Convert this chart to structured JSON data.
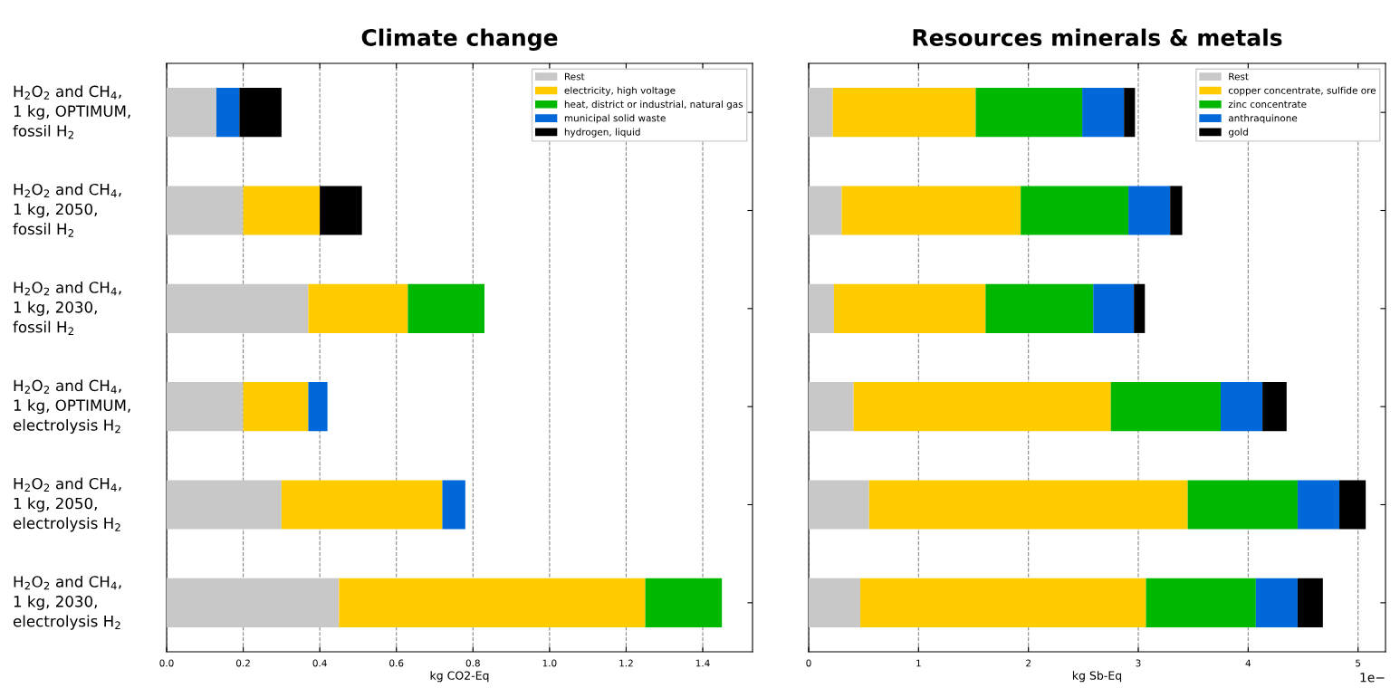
{
  "chart_data": [
    {
      "type": "bar",
      "orientation": "horizontal",
      "stacked": true,
      "title": "Climate change",
      "xlabel": "kg CO2-Eq",
      "categories": [
        "H$_{2}$O$_{2}$ and CH$_{4}$,\n1 kg, OPTIMUM,\nfossil H$_{2}$",
        "H$_{2}$O$_{2}$ and CH$_{4}$,\n1 kg, 2050,\nfossil H$_{2}$",
        "H$_{2}$O$_{2}$ and CH$_{4}$,\n1 kg, 2030,\nfossil H$_{2}$",
        "H$_{2}$O$_{2}$ and CH$_{4}$,\n1 kg, OPTIMUM,\nelectrolysis H$_{2}$",
        "H$_{2}$O$_{2}$ and CH$_{4}$,\n1 kg, 2050,\nelectrolysis H$_{2}$",
        "H$_{2}$O$_{2}$ and CH$_{4}$,\n1 kg, 2030,\nelectrolysis H$_{2}$"
      ],
      "series": [
        {
          "name": "Rest",
          "color": "#c8c8c8",
          "values": [
            0.13,
            0.2,
            0.37,
            0.2,
            0.3,
            0.45
          ]
        },
        {
          "name": "electricity, high voltage",
          "color": "#ffcc00",
          "values": [
            null,
            0.2,
            0.26,
            0.17,
            0.42,
            0.8
          ]
        },
        {
          "name": "heat, district or industrial, natural gas",
          "color": "#00b800",
          "values": [
            null,
            null,
            0.2,
            null,
            null,
            0.2
          ]
        },
        {
          "name": "municipal solid waste",
          "color": "#0068d8",
          "values": [
            0.06,
            null,
            null,
            0.05,
            0.06,
            null
          ]
        },
        {
          "name": "hydrogen, liquid",
          "color": "#000000",
          "values": [
            0.11,
            0.11,
            null,
            null,
            null,
            null
          ]
        }
      ],
      "xlim": [
        0,
        1.53
      ],
      "xticks": [
        {
          "value": 0,
          "label": "0.0"
        },
        0.2,
        0.4,
        0.6,
        0.8,
        {
          "value": 1,
          "label": "1.0"
        },
        1.2,
        1.4
      ],
      "grid": "x",
      "legend": "top right"
    },
    {
      "type": "bar",
      "orientation": "horizontal",
      "stacked": true,
      "title": "Resources minerals & metals",
      "xlabel": "kg Sb-Eq",
      "categories": [
        null,
        null,
        null,
        null,
        null,
        null
      ],
      "series": [
        {
          "name": "Rest",
          "color": "#c8c8c8",
          "values": [
            0.22,
            0.3,
            0.23,
            0.41,
            0.55,
            0.47
          ]
        },
        {
          "name": "copper concentrate, sulfide ore",
          "color": "#ffcc00",
          "values": [
            1.3,
            1.63,
            1.38,
            2.34,
            2.9,
            2.6
          ]
        },
        {
          "name": "zinc concentrate",
          "color": "#00b800",
          "values": [
            0.97,
            0.98,
            0.98,
            1.0,
            1.0,
            1.0
          ]
        },
        {
          "name": "anthraquinone",
          "color": "#0068d8",
          "values": [
            0.38,
            0.38,
            0.37,
            0.38,
            0.38,
            0.38
          ]
        },
        {
          "name": "gold",
          "color": "#000000",
          "values": [
            0.1,
            0.11,
            0.1,
            0.22,
            0.24,
            0.23
          ]
        }
      ],
      "xlim": [
        0,
        5.25
      ],
      "xticks": [
        0,
        1,
        2,
        3,
        4,
        5
      ],
      "grid": "x",
      "legend": "top right",
      "tick_labels": "x",
      "annotations": [
        "1e−"
      ]
    }
  ]
}
